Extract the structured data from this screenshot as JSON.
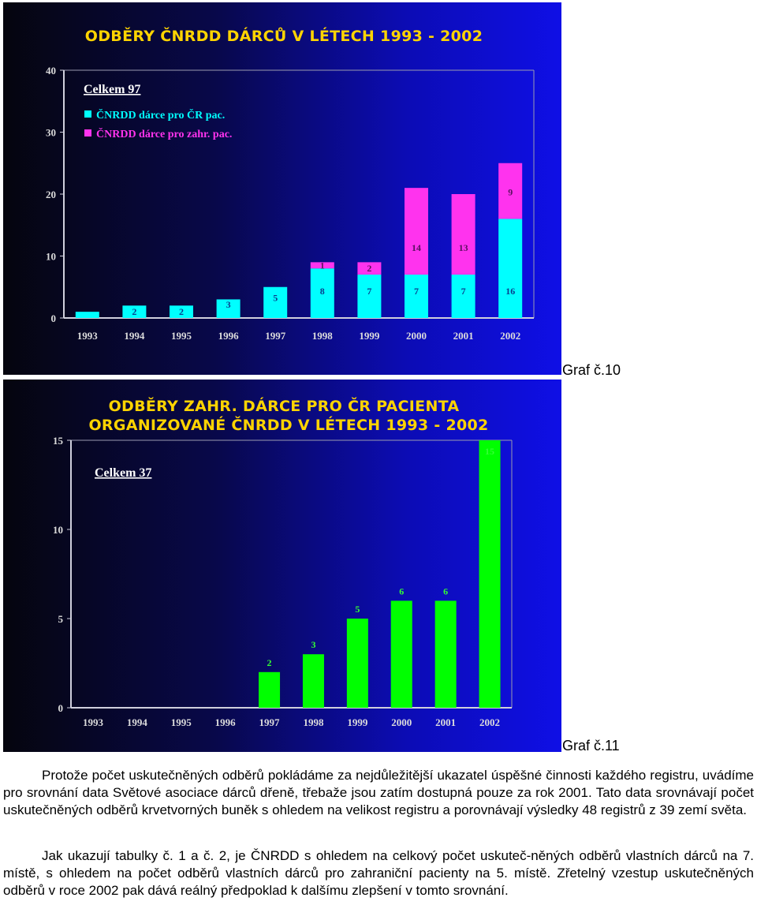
{
  "charts": [
    {
      "title": "ODBĚRY ČNRDD DÁRCŮ V LÉTECH 1993 - 2002",
      "caption": "Graf č.10",
      "total_label": "Celkem 97",
      "legend": [
        {
          "label": "ČNRDD dárce pro ČR pac.",
          "color": "#00ffff"
        },
        {
          "label": "ČNRDD dárce pro zahr. pac.",
          "color": "#ff33ee"
        }
      ]
    },
    {
      "title_line1": "ODBĚRY ZAHR. DÁRCE PRO ČR PACIENTA",
      "title_line2": "ORGANIZOVANÉ ČNRDD V LÉTECH 1993 - 2002",
      "caption": "Graf č.11",
      "total_label": "Celkem 37"
    }
  ],
  "chart_data": [
    {
      "type": "bar",
      "stacked": true,
      "title": "ODBĚRY ČNRDD DÁRCŮ V LÉTECH 1993 - 2002",
      "categories": [
        "1993",
        "1994",
        "1995",
        "1996",
        "1997",
        "1998",
        "1999",
        "2000",
        "2001",
        "2002"
      ],
      "series": [
        {
          "name": "ČNRDD dárce pro ČR pac.",
          "color": "#00ffff",
          "values": [
            1,
            2,
            2,
            3,
            5,
            8,
            7,
            7,
            7,
            16
          ]
        },
        {
          "name": "ČNRDD dárce pro zahr. pac.",
          "color": "#ff33ee",
          "values": [
            0,
            0,
            0,
            0,
            0,
            1,
            2,
            14,
            13,
            9
          ]
        }
      ],
      "data_labels": [
        [
          "",
          "2",
          "2",
          "3",
          "5",
          "8",
          "7",
          "7",
          "7",
          "16"
        ],
        [
          "",
          "",
          "",
          "",
          "",
          "1",
          "2",
          "14",
          "13",
          "9"
        ]
      ],
      "yticks": [
        "0",
        "10",
        "20",
        "30",
        "40"
      ],
      "ylim": [
        0,
        40
      ],
      "grid": false,
      "legend_position": "top-left"
    },
    {
      "type": "bar",
      "title": "ODBĚRY ZAHR. DÁRCE PRO ČR PACIENTA ORGANIZOVANÉ ČNRDD V LÉTECH 1993 - 2002",
      "categories": [
        "1993",
        "1994",
        "1995",
        "1996",
        "1997",
        "1998",
        "1999",
        "2000",
        "2001",
        "2002"
      ],
      "values": [
        0,
        0,
        0,
        0,
        2,
        3,
        5,
        6,
        6,
        15
      ],
      "data_labels": [
        "",
        "",
        "",
        "",
        "2",
        "3",
        "5",
        "6",
        "6",
        "15"
      ],
      "color": "#00ff00",
      "yticks": [
        "0",
        "5",
        "10",
        "15"
      ],
      "ylim": [
        0,
        15
      ],
      "grid": false
    }
  ],
  "text": {
    "para1": "Protože počet uskutečněných odběrů pokládáme za nejdůležitější ukazatel úspěšné činnosti každého registru, uvádíme pro srovnání data Světové asociace dárců dřeně, třebaže jsou zatím dostupná pouze za rok 2001. Tato data srovnávají počet uskutečněných odběrů krvetvorných buněk s ohledem na velikost registru a porovnávají výsledky 48 registrů z 39 zemí světa.",
    "para2": "Jak ukazují tabulky č. 1 a č. 2, je ČNRDD s ohledem na celkový počet uskuteč-něných odběrů vlastních dárců na 7. místě, s ohledem na počet odběrů vlastních dárců pro zahraniční pacienty na 5. místě. Zřetelný vzestup uskutečněných odběrů v roce 2002 pak dává reálný předpoklad k dalšímu zlepšení v tomto srovnání."
  }
}
